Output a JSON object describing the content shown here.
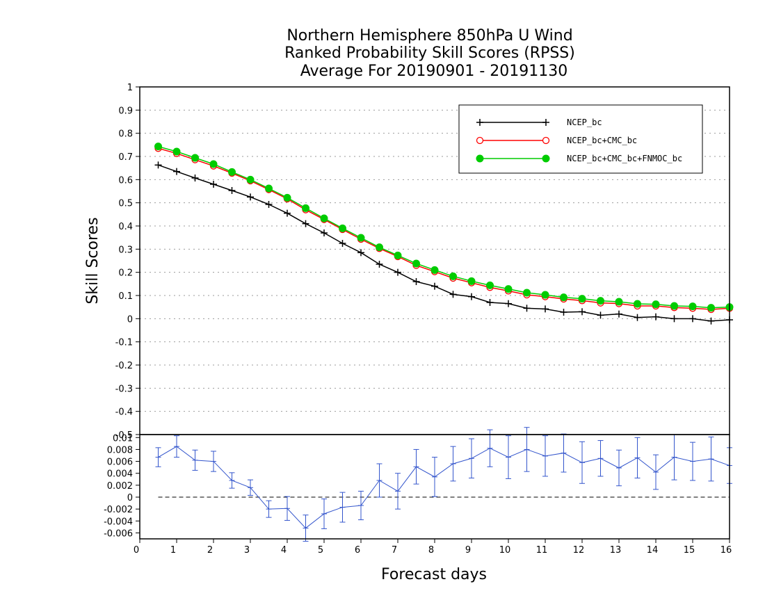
{
  "chart_data": [
    {
      "type": "line",
      "panel": "main",
      "title_lines": [
        "Northern Hemisphere 850hPa U Wind",
        "Ranked Probability Skill Scores (RPSS)",
        "Average For 20190901 - 20191130"
      ],
      "xlabel": "Forecast days",
      "ylabel": "Skill Scores",
      "xlim": [
        0,
        16
      ],
      "ylim": [
        -0.5,
        1
      ],
      "x_ticks": [
        "0",
        "1",
        "2",
        "3",
        "4",
        "5",
        "6",
        "7",
        "8",
        "9",
        "10",
        "11",
        "12",
        "13",
        "14",
        "15",
        "16"
      ],
      "y_ticks": [
        "1",
        "0.9",
        "0.8",
        "0.7",
        "0.6",
        "0.5",
        "0.4",
        "0.3",
        "0.2",
        "0.1",
        "0",
        "-0.1",
        "-0.2",
        "-0.3",
        "-0.4",
        "-0.5"
      ],
      "grid": true,
      "legend_position": "top-right",
      "x": [
        0.5,
        1,
        1.5,
        2,
        2.5,
        3,
        3.5,
        4,
        4.5,
        5,
        5.5,
        6,
        6.5,
        7,
        7.5,
        8,
        8.5,
        9,
        9.5,
        10,
        10.5,
        11,
        11.5,
        12,
        12.5,
        13,
        13.5,
        14,
        14.5,
        15,
        15.5,
        16
      ],
      "series": [
        {
          "name": "NCEP_bc",
          "color": "#000000",
          "marker": "plus",
          "values": [
            0.663,
            0.635,
            0.607,
            0.58,
            0.553,
            0.525,
            0.493,
            0.455,
            0.41,
            0.37,
            0.325,
            0.285,
            0.235,
            0.2,
            0.16,
            0.14,
            0.105,
            0.095,
            0.07,
            0.065,
            0.045,
            0.042,
            0.028,
            0.03,
            0.015,
            0.02,
            0.005,
            0.008,
            0.0,
            0.0,
            -0.01,
            -0.005
          ]
        },
        {
          "name": "NCEP_bc+CMC_bc",
          "color": "#ff0000",
          "marker": "open-circle",
          "values": [
            0.735,
            0.713,
            0.686,
            0.659,
            0.628,
            0.595,
            0.557,
            0.517,
            0.47,
            0.428,
            0.385,
            0.343,
            0.303,
            0.268,
            0.23,
            0.203,
            0.175,
            0.155,
            0.135,
            0.12,
            0.103,
            0.095,
            0.085,
            0.078,
            0.068,
            0.065,
            0.055,
            0.055,
            0.048,
            0.045,
            0.04,
            0.045
          ]
        },
        {
          "name": "NCEP_bc+CMC_bc+FNMOC_bc",
          "color": "#00cc00",
          "marker": "filled-circle",
          "values": [
            0.743,
            0.721,
            0.694,
            0.667,
            0.633,
            0.6,
            0.562,
            0.522,
            0.477,
            0.433,
            0.39,
            0.349,
            0.308,
            0.273,
            0.238,
            0.21,
            0.183,
            0.162,
            0.144,
            0.128,
            0.112,
            0.103,
            0.092,
            0.086,
            0.077,
            0.073,
            0.064,
            0.062,
            0.055,
            0.053,
            0.047,
            0.05
          ]
        }
      ]
    },
    {
      "type": "line",
      "panel": "difference",
      "xlim": [
        0,
        16
      ],
      "ylim": [
        -0.007,
        0.0105
      ],
      "y_ticks": [
        "0.01",
        "0.008",
        "0.006",
        "0.004",
        "0.002",
        "0",
        "-0.002",
        "-0.004",
        "-0.006"
      ],
      "zero_line": "dashed",
      "series": [
        {
          "color": "#3355cc",
          "marker": "error-bars",
          "values": [
            0.0067,
            0.0085,
            0.0062,
            0.006,
            0.0028,
            0.0016,
            -0.002,
            -0.0019,
            -0.0052,
            -0.0028,
            -0.0017,
            -0.0014,
            0.0028,
            0.001,
            0.0051,
            0.0034,
            0.0056,
            0.0065,
            0.0082,
            0.0067,
            0.008,
            0.0069,
            0.0074,
            0.0058,
            0.0065,
            0.0049,
            0.0066,
            0.0042,
            0.0067,
            0.006,
            0.0064,
            0.0053
          ],
          "error": [
            0.0016,
            0.0018,
            0.0017,
            0.0017,
            0.0013,
            0.0013,
            0.0014,
            0.002,
            0.0022,
            0.0025,
            0.0025,
            0.0024,
            0.0028,
            0.003,
            0.0029,
            0.0033,
            0.0029,
            0.0033,
            0.0031,
            0.0036,
            0.0037,
            0.0034,
            0.0032,
            0.0035,
            0.003,
            0.003,
            0.0034,
            0.0029,
            0.0038,
            0.0032,
            0.0037,
            0.003
          ]
        }
      ]
    }
  ]
}
